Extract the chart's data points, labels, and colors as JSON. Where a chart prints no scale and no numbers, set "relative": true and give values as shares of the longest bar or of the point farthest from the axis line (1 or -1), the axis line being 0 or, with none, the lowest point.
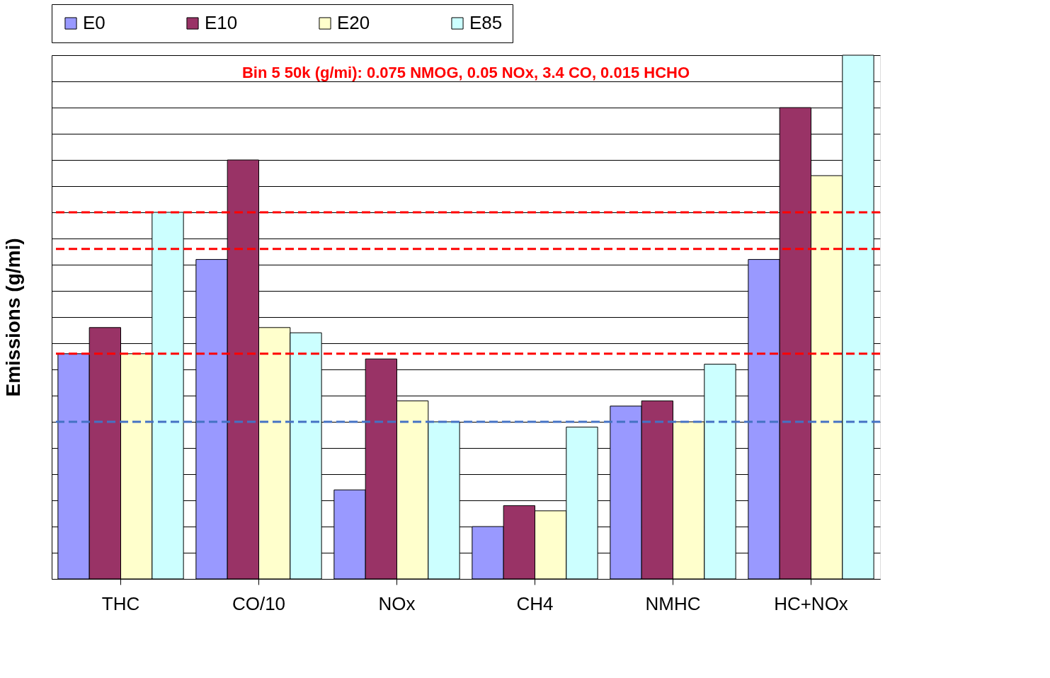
{
  "chart_data": {
    "type": "bar",
    "ylabel": "Emissions (g/mi)",
    "relative": true,
    "grid": "y",
    "legend": "top",
    "categories": [
      "THC",
      "CO/10",
      "NOx",
      "CH4",
      "NMHC",
      "HC+NOx"
    ],
    "series": [
      {
        "name": "E0",
        "color": "#9999ff",
        "values": [
          0.43,
          0.61,
          0.17,
          0.1,
          0.33,
          0.61
        ]
      },
      {
        "name": "E10",
        "color": "#993366",
        "values": [
          0.48,
          0.8,
          0.42,
          0.14,
          0.34,
          0.9
        ]
      },
      {
        "name": "E20",
        "color": "#ffffcc",
        "values": [
          0.43,
          0.48,
          0.34,
          0.13,
          0.3,
          0.77
        ]
      },
      {
        "name": "E85",
        "color": "#ccffff",
        "values": [
          0.7,
          0.47,
          0.3,
          0.29,
          0.41,
          1.0
        ]
      }
    ],
    "ref_lines": [
      {
        "axis": "y",
        "value": 0.7,
        "color": "#ff0000",
        "line_style": "dashed"
      },
      {
        "axis": "y",
        "value": 0.43,
        "color": "#ff0000",
        "line_style": "dashed"
      },
      {
        "axis": "y",
        "value": 0.63,
        "color": "#ff0000",
        "line_style": "dashed"
      },
      {
        "axis": "y",
        "value": 0.3,
        "color": "#4472c4",
        "line_style": "dashed"
      }
    ],
    "annotations": [
      "Bin 5 50k (g/mi): 0.075 NMOG, 0.05 NOx, 3.4 CO, 0.015 HCHO"
    ]
  }
}
